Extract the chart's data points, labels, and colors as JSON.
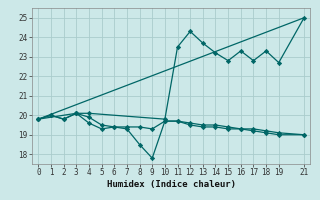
{
  "title": "",
  "xlabel": "Humidex (Indice chaleur)",
  "background_color": "#cce8e8",
  "grid_color": "#aacccc",
  "line_color": "#006666",
  "xlim": [
    -0.5,
    21.5
  ],
  "ylim": [
    17.5,
    25.5
  ],
  "yticks": [
    18,
    19,
    20,
    21,
    22,
    23,
    24,
    25
  ],
  "xticks": [
    0,
    1,
    2,
    3,
    4,
    5,
    6,
    7,
    8,
    9,
    10,
    11,
    12,
    13,
    14,
    15,
    16,
    17,
    18,
    19,
    21
  ],
  "series": [
    {
      "x": [
        0,
        1,
        2,
        3,
        4,
        5,
        6,
        7,
        8,
        9,
        10,
        11,
        12,
        13,
        14,
        15,
        16,
        17,
        18,
        19,
        21
      ],
      "y": [
        19.8,
        20.0,
        19.8,
        20.1,
        19.9,
        19.5,
        19.4,
        19.4,
        19.4,
        19.3,
        19.7,
        19.7,
        19.6,
        19.5,
        19.5,
        19.4,
        19.3,
        19.3,
        19.2,
        19.1,
        19.0
      ],
      "marker": "D",
      "markersize": 2.2,
      "linewidth": 0.9
    },
    {
      "x": [
        0,
        1,
        2,
        3,
        4,
        5,
        6,
        7,
        8,
        9,
        10,
        11,
        12,
        13,
        14,
        15,
        16,
        17,
        18,
        19,
        21
      ],
      "y": [
        19.8,
        20.0,
        19.8,
        20.1,
        19.6,
        19.3,
        19.4,
        19.3,
        18.5,
        17.8,
        19.7,
        19.7,
        19.5,
        19.4,
        19.4,
        19.3,
        19.3,
        19.2,
        19.1,
        19.0,
        19.0
      ],
      "marker": "D",
      "markersize": 2.2,
      "linewidth": 0.9
    },
    {
      "x": [
        0,
        3,
        4,
        10,
        11,
        12,
        13,
        14,
        15,
        16,
        17,
        18,
        19,
        21
      ],
      "y": [
        19.8,
        20.1,
        20.1,
        19.8,
        23.5,
        24.3,
        23.7,
        23.2,
        22.8,
        23.3,
        22.8,
        23.3,
        22.7,
        25.0
      ],
      "marker": "D",
      "markersize": 2.2,
      "linewidth": 0.9
    },
    {
      "x": [
        0,
        21
      ],
      "y": [
        19.8,
        25.0
      ],
      "marker": null,
      "markersize": 0,
      "linewidth": 0.9
    }
  ]
}
